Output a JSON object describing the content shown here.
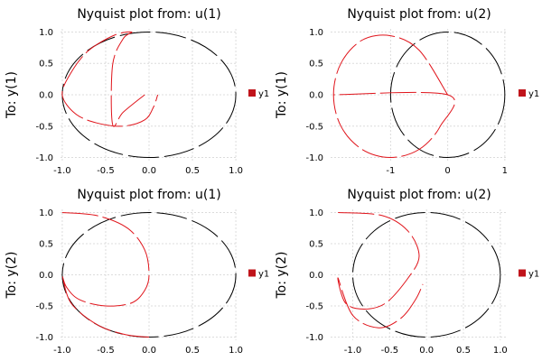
{
  "chart_data": [
    {
      "type": "line",
      "title": "Nyquist plot from: u(1)",
      "ylabel": "To: y(1)",
      "legend": "y1",
      "legend_placement": "right",
      "grid": true,
      "xlim": [
        -1.02,
        1.02
      ],
      "ylim": [
        -1.05,
        1.05
      ],
      "xticks": [
        -1.0,
        -0.5,
        0.0,
        0.5,
        1.0
      ],
      "xtick_labels": [
        "-1.0",
        "-0.5",
        "0.0",
        "0.5",
        "1.0"
      ],
      "yticks": [
        1.0,
        0.5,
        0.0,
        -0.5,
        -1.0
      ],
      "ytick_labels": [
        "1.0",
        "0.5",
        "0.0",
        "-0.5",
        "-1.0"
      ],
      "series": [
        {
          "kind": "unit-circle",
          "color": "#000000",
          "x": [
            0.0,
            0.5,
            0.87,
            1.0,
            0.87,
            0.5,
            0.0,
            -0.5,
            -0.87,
            -1.0,
            -0.87,
            -0.5,
            0.0
          ],
          "y": [
            1.0,
            0.87,
            0.5,
            0.0,
            -0.5,
            -0.87,
            -1.0,
            -0.87,
            -0.5,
            0.0,
            0.5,
            0.87,
            1.0
          ]
        },
        {
          "kind": "nyquist",
          "color": "#e0141b",
          "x": [
            -0.05,
            -0.3,
            -0.42,
            -0.42,
            -0.3,
            -0.2,
            -0.4,
            -0.7,
            -0.9,
            -1.0,
            -0.85,
            -0.6,
            -0.3,
            -0.05,
            0.05,
            0.1
          ],
          "y": [
            0.0,
            -0.28,
            -0.47,
            0.47,
            0.89,
            1.0,
            0.95,
            0.7,
            0.35,
            0.0,
            -0.3,
            -0.45,
            -0.5,
            -0.4,
            -0.2,
            0.0
          ]
        }
      ]
    },
    {
      "type": "line",
      "title": "Nyquist plot from: u(2)",
      "ylabel": "To: y(1)",
      "legend": "y1",
      "legend_placement": "right",
      "grid": true,
      "xlim": [
        -2.05,
        1.05
      ],
      "ylim": [
        -1.05,
        1.05
      ],
      "xticks": [
        -1,
        0,
        1
      ],
      "xtick_labels": [
        "-1",
        "0",
        "1"
      ],
      "yticks": [
        1.0,
        0.5,
        0.0,
        -0.5,
        -1.0
      ],
      "ytick_labels": [
        "1.0",
        "0.5",
        "0.0",
        "-0.5",
        "-1.0"
      ],
      "series": [
        {
          "kind": "unit-circle",
          "color": "#000000",
          "x": [
            0.0,
            -0.5,
            -0.87,
            -1.0,
            -0.87,
            -0.5,
            0.0,
            0.5,
            0.87,
            1.0,
            0.87,
            0.5,
            0.0
          ],
          "y": [
            1.0,
            0.87,
            0.5,
            0.0,
            -0.5,
            -0.87,
            -1.0,
            -0.87,
            -0.5,
            0.0,
            0.5,
            0.87,
            1.0
          ]
        },
        {
          "kind": "nyquist",
          "color": "#e0141b",
          "x": [
            0.0,
            -0.5,
            -1.0,
            -1.5,
            -1.87,
            -2.0,
            -1.87,
            -1.5,
            -1.0,
            -0.5,
            -0.13,
            0.0,
            -2.0
          ],
          "y": [
            0.0,
            0.71,
            0.94,
            0.87,
            0.5,
            0.0,
            -0.5,
            -0.87,
            -1.0,
            -0.87,
            -0.5,
            0.0,
            0.0
          ]
        }
      ]
    },
    {
      "type": "line",
      "title": "Nyquist plot from: u(1)",
      "ylabel": "To: y(2)",
      "legend": "y1",
      "legend_placement": "right",
      "grid": true,
      "xlim": [
        -1.02,
        1.02
      ],
      "ylim": [
        -1.05,
        1.05
      ],
      "xticks": [
        -1.0,
        -0.5,
        0.0,
        0.5,
        1.0
      ],
      "xtick_labels": [
        "-1.0",
        "-0.5",
        "0.0",
        "0.5",
        "1.0"
      ],
      "yticks": [
        1.0,
        0.5,
        0.0,
        -0.5,
        -1.0
      ],
      "ytick_labels": [
        "1.0",
        "0.5",
        "0.0",
        "-0.5",
        "-1.0"
      ],
      "series": [
        {
          "kind": "unit-circle",
          "color": "#000000",
          "x": [
            0.0,
            0.5,
            0.87,
            1.0,
            0.87,
            0.5,
            0.0,
            -0.5,
            -0.87,
            -1.0,
            -0.87,
            -0.5,
            0.0
          ],
          "y": [
            1.0,
            0.87,
            0.5,
            0.0,
            -0.5,
            -0.87,
            -1.0,
            -0.87,
            -0.5,
            0.0,
            0.5,
            0.87,
            1.0
          ]
        },
        {
          "kind": "nyquist",
          "color": "#e0141b",
          "x": [
            -1.0,
            -0.6,
            -0.25,
            -0.05,
            0.0,
            -0.05,
            -0.2,
            -0.5,
            -0.8,
            -0.95,
            -1.0,
            -0.9,
            -0.6,
            -0.3,
            -0.1,
            0.0
          ],
          "y": [
            1.0,
            0.95,
            0.75,
            0.4,
            0.0,
            -0.25,
            -0.45,
            -0.5,
            -0.4,
            -0.2,
            0.0,
            -0.45,
            -0.8,
            -0.95,
            -0.99,
            -1.0
          ]
        }
      ]
    },
    {
      "type": "line",
      "title": "Nyquist plot from: u(2)",
      "ylabel": "To: y(2)",
      "legend": "y1",
      "legend_placement": "right",
      "grid": true,
      "xlim": [
        -1.3,
        1.1
      ],
      "ylim": [
        -1.05,
        1.05
      ],
      "xticks": [
        -1.0,
        -0.5,
        0.0,
        0.5,
        1.0
      ],
      "xtick_labels": [
        "-1.0",
        "-0.5",
        "0.0",
        "0.5",
        "1.0"
      ],
      "yticks": [
        1.0,
        0.5,
        0.0,
        -0.5,
        -1.0
      ],
      "ytick_labels": [
        "1.0",
        "0.5",
        "0.0",
        "-0.5",
        "-1.0"
      ],
      "series": [
        {
          "kind": "unit-circle",
          "color": "#000000",
          "x": [
            0.0,
            0.5,
            0.87,
            1.0,
            0.87,
            0.5,
            0.0,
            -0.5,
            -0.87,
            -1.0,
            -0.87,
            -0.5,
            0.0
          ],
          "y": [
            1.0,
            0.87,
            0.5,
            0.0,
            -0.5,
            -0.87,
            -1.0,
            -0.87,
            -0.5,
            0.0,
            0.5,
            0.87,
            1.0
          ]
        },
        {
          "kind": "nyquist",
          "color": "#e0141b",
          "x": [
            -1.2,
            -0.6,
            -0.25,
            -0.1,
            -0.25,
            -0.55,
            -0.85,
            -1.1,
            -1.2,
            -1.0,
            -0.65,
            -0.35,
            -0.15,
            -0.05
          ],
          "y": [
            1.0,
            0.95,
            0.7,
            0.3,
            -0.05,
            -0.45,
            -0.55,
            -0.45,
            -0.05,
            -0.65,
            -0.85,
            -0.7,
            -0.4,
            -0.15
          ]
        }
      ]
    }
  ]
}
